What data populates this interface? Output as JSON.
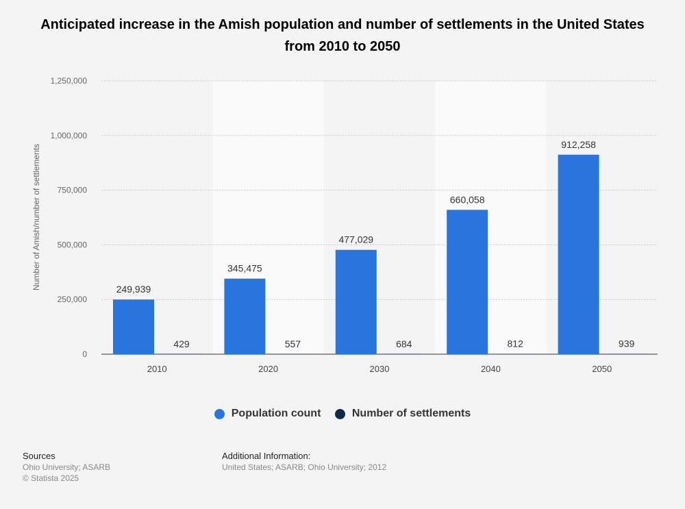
{
  "chart_data": {
    "type": "bar",
    "title": "Anticipated increase in the Amish population and number of settlements in the United States from 2010 to 2050",
    "xlabel": "",
    "ylabel": "Number of Amish/number of settlements",
    "categories": [
      "2010",
      "2020",
      "2030",
      "2040",
      "2050"
    ],
    "series": [
      {
        "name": "Population count",
        "color": "#2876dd",
        "values": [
          249939,
          345475,
          477029,
          660058,
          912258
        ],
        "labels": [
          "249,939",
          "345,475",
          "477,029",
          "660,058",
          "912,258"
        ]
      },
      {
        "name": "Number of settlements",
        "color": "#0f2b46",
        "values": [
          429,
          557,
          684,
          812,
          939
        ],
        "labels": [
          "429",
          "557",
          "684",
          "812",
          "939"
        ]
      }
    ],
    "ylim": [
      0,
      1250000
    ],
    "yticks": [
      0,
      250000,
      500000,
      750000,
      1000000,
      1250000
    ],
    "ytick_labels": [
      "0",
      "250,000",
      "500,000",
      "750,000",
      "1,000,000",
      "1,250,000"
    ],
    "grid": true,
    "legend_placement": "bottom"
  },
  "footer": {
    "sources_heading": "Sources",
    "sources_text": "Ohio University; ASARB",
    "copyright": "© Statista 2025",
    "additional_heading": "Additional Information:",
    "additional_text": "United States; ASARB; Ohio University; 2012"
  }
}
